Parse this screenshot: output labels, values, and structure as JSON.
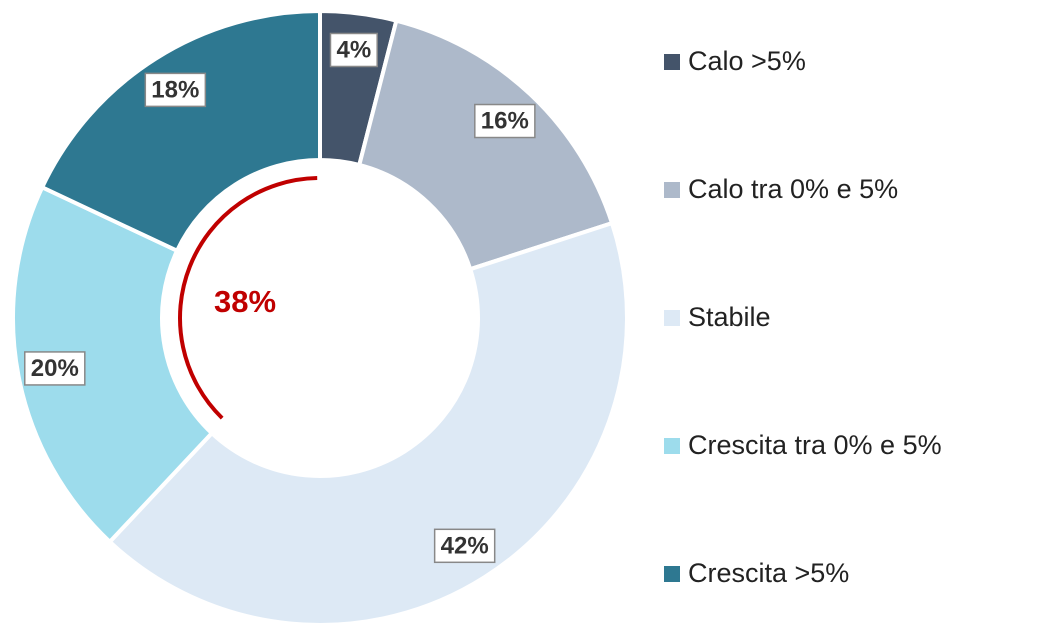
{
  "chart_data": {
    "type": "donut",
    "categories": [
      "Calo >5%",
      "Calo tra 0% e 5%",
      "Stabile",
      "Crescita tra 0% e 5%",
      "Crescita >5%"
    ],
    "values": [
      4,
      16,
      42,
      20,
      18
    ],
    "value_labels": [
      "4%",
      "16%",
      "42%",
      "20%",
      "18%"
    ],
    "colors": [
      "#44546a",
      "#adb9ca",
      "#dde9f5",
      "#9ddcec",
      "#2e7891"
    ],
    "annotation": "38%",
    "annotation_color": "#c00000",
    "legend": "right"
  }
}
